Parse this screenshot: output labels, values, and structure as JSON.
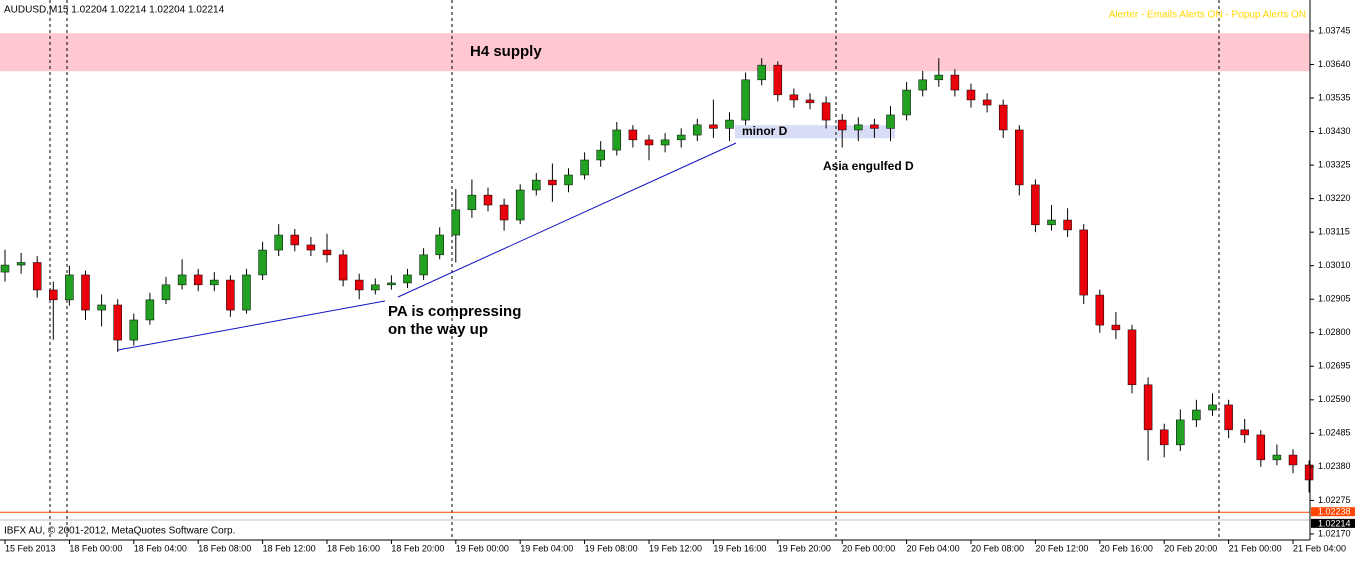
{
  "chart_data": {
    "type": "candlestick",
    "title": "AUDUSD,M15  1.02204 1.02214 1.02204 1.02214",
    "alert_status": "Alerter - Emails Alerts ON - Popup Alerts ON",
    "copyright": "IBFX AU, © 2001-2012, MetaQuotes Software Corp.",
    "up_color": "#22a022",
    "down_color": "#e8000b",
    "categories": [
      "15 Feb 2013",
      null,
      null,
      null,
      "18 Feb 00:00",
      null,
      null,
      null,
      "18 Feb 04:00",
      null,
      null,
      null,
      "18 Feb 08:00",
      null,
      null,
      null,
      "18 Feb 12:00",
      null,
      null,
      null,
      "18 Feb 16:00",
      null,
      null,
      null,
      "18 Feb 20:00",
      null,
      null,
      null,
      "19 Feb 00:00",
      null,
      null,
      null,
      "19 Feb 04:00",
      null,
      null,
      null,
      "19 Feb 08:00",
      null,
      null,
      null,
      "19 Feb 12:00",
      null,
      null,
      null,
      "19 Feb 16:00",
      null,
      null,
      null,
      "19 Feb 20:00",
      null,
      null,
      null,
      "20 Feb 00:00",
      null,
      null,
      null,
      "20 Feb 04:00",
      null,
      null,
      null,
      "20 Feb 08:00",
      null,
      null,
      null,
      "20 Feb 12:00",
      null,
      null,
      null,
      "20 Feb 16:00",
      null,
      null,
      null,
      "20 Feb 20:00",
      null,
      null,
      null,
      "21 Feb 00:00",
      null,
      null,
      null,
      "21 Feb 04:00",
      null
    ],
    "open": [
      1.0299,
      1.03012,
      1.0302,
      1.02934,
      1.02903,
      1.02981,
      1.02871,
      1.02887,
      1.02777,
      1.0284,
      1.02903,
      1.0295,
      1.02981,
      1.0295,
      1.02965,
      1.02871,
      1.02981,
      1.03059,
      1.03106,
      1.03075,
      1.03059,
      1.03044,
      1.02965,
      1.02934,
      1.0295,
      1.02956,
      1.02981,
      1.03044,
      1.03106,
      1.03185,
      1.03231,
      1.032,
      1.03153,
      1.03247,
      1.03278,
      1.03263,
      1.03294,
      1.03341,
      1.03372,
      1.03435,
      1.03404,
      1.03388,
      1.03404,
      1.03419,
      1.03451,
      1.0344,
      1.03466,
      1.03592,
      1.03638,
      1.03545,
      1.03529,
      1.0352,
      1.03466,
      1.03435,
      1.03451,
      1.0344,
      1.03482,
      1.0356,
      1.03592,
      1.03607,
      1.0356,
      1.03529,
      1.03513,
      1.03435,
      1.03263,
      1.03138,
      1.03153,
      1.03122,
      1.02918,
      1.02824,
      1.02809,
      1.02637,
      1.02496,
      1.02449,
      1.02527,
      1.02558,
      1.02574,
      1.02496,
      1.0248,
      1.02402,
      1.02417,
      1.02386
    ],
    "high": [
      1.0306,
      1.0305,
      1.0304,
      1.0296,
      1.0301,
      1.02995,
      1.0292,
      1.02905,
      1.0286,
      1.02925,
      1.02975,
      1.0303,
      1.03,
      1.0299,
      1.0298,
      1.03,
      1.03085,
      1.0314,
      1.03125,
      1.031,
      1.0311,
      1.0306,
      1.02985,
      1.0297,
      1.0298,
      1.03,
      1.03065,
      1.0313,
      1.0325,
      1.0328,
      1.03255,
      1.0322,
      1.03265,
      1.033,
      1.0333,
      1.03315,
      1.03365,
      1.034,
      1.0346,
      1.0345,
      1.0342,
      1.03425,
      1.0344,
      1.0347,
      1.0353,
      1.0349,
      1.03615,
      1.0366,
      1.0365,
      1.03565,
      1.0355,
      1.0354,
      1.03485,
      1.03475,
      1.0347,
      1.0351,
      1.03585,
      1.0362,
      1.0366,
      1.03625,
      1.0358,
      1.0355,
      1.0353,
      1.0345,
      1.0328,
      1.032,
      1.0319,
      1.0314,
      1.02935,
      1.02865,
      1.02825,
      1.0266,
      1.02515,
      1.0256,
      1.0259,
      1.0261,
      1.0259,
      1.0253,
      1.02495,
      1.0245,
      1.02435,
      1.024
    ],
    "low": [
      1.0296,
      1.02985,
      1.0291,
      1.02778,
      1.02885,
      1.0284,
      1.0282,
      1.0274,
      1.0276,
      1.02825,
      1.0289,
      1.02935,
      1.0293,
      1.0293,
      1.0285,
      1.0286,
      1.02965,
      1.0304,
      1.03055,
      1.0304,
      1.0302,
      1.02945,
      1.02905,
      1.0292,
      1.02935,
      1.0294,
      1.02965,
      1.0303,
      1.0302,
      1.0316,
      1.0318,
      1.0312,
      1.0314,
      1.0323,
      1.0321,
      1.0324,
      1.0328,
      1.0332,
      1.03355,
      1.0338,
      1.0334,
      1.03365,
      1.0338,
      1.034,
      1.0341,
      1.034,
      1.0345,
      1.03575,
      1.03525,
      1.03505,
      1.035,
      1.0344,
      1.0338,
      1.034,
      1.0341,
      1.034,
      1.03465,
      1.0354,
      1.0357,
      1.0354,
      1.03505,
      1.0349,
      1.0341,
      1.0323,
      1.03115,
      1.0312,
      1.031,
      1.0289,
      1.028,
      1.0278,
      1.0261,
      1.024,
      1.0241,
      1.0243,
      1.02505,
      1.0254,
      1.0247,
      1.02455,
      1.0238,
      1.02385,
      1.0236,
      1.023
    ],
    "close": [
      1.03012,
      1.0302,
      1.02934,
      1.02903,
      1.02981,
      1.02871,
      1.02887,
      1.02777,
      1.0284,
      1.02903,
      1.0295,
      1.02981,
      1.0295,
      1.02965,
      1.02871,
      1.02981,
      1.03059,
      1.03106,
      1.03075,
      1.03059,
      1.03044,
      1.02965,
      1.02934,
      1.0295,
      1.02956,
      1.02981,
      1.03044,
      1.03106,
      1.03185,
      1.03231,
      1.032,
      1.03153,
      1.03247,
      1.03278,
      1.03263,
      1.03294,
      1.03341,
      1.03372,
      1.03435,
      1.03404,
      1.03388,
      1.03404,
      1.03419,
      1.03451,
      1.0344,
      1.03466,
      1.03592,
      1.03638,
      1.03545,
      1.03529,
      1.0352,
      1.03466,
      1.03435,
      1.03451,
      1.0344,
      1.03482,
      1.0356,
      1.03592,
      1.03607,
      1.0356,
      1.03529,
      1.03513,
      1.03435,
      1.03263,
      1.03138,
      1.03153,
      1.03122,
      1.02918,
      1.02824,
      1.02809,
      1.02637,
      1.02496,
      1.02449,
      1.02527,
      1.02558,
      1.02574,
      1.02496,
      1.0248,
      1.02402,
      1.02417,
      1.02386,
      1.02339
    ],
    "ylim": [
      1.02151,
      1.03842
    ],
    "yticks": [
      1.03745,
      {
        "value": 1.0364,
        "label": "1.03640"
      },
      1.03535,
      {
        "value": 1.0343,
        "label": "1.03430"
      },
      1.03325,
      {
        "value": 1.0322,
        "label": "1.03220"
      },
      1.03115,
      {
        "value": 1.0301,
        "label": "1.03010"
      },
      1.02905,
      {
        "value": 1.028,
        "label": "1.02800"
      },
      1.02695,
      {
        "value": 1.0259,
        "label": "1.02590"
      },
      1.02485,
      {
        "value": 1.0238,
        "label": "1.02380"
      },
      1.02275,
      {
        "value": 1.0217,
        "label": "1.02170"
      }
    ],
    "price_lines": [
      {
        "value": 1.02238,
        "color": "#ff4500"
      },
      {
        "value": 1.02214,
        "color": "#000000"
      }
    ],
    "zones": [
      {
        "label": "H4 supply",
        "from": 1.03619,
        "to": 1.03738,
        "color": "#ffc8d0"
      },
      {
        "label": "minor D",
        "from": 1.03409,
        "to": 1.0345,
        "color": "#d8dcf4"
      }
    ],
    "annotations": [
      "Asia engulfed D",
      "PA is compressing",
      "on the way up"
    ]
  }
}
